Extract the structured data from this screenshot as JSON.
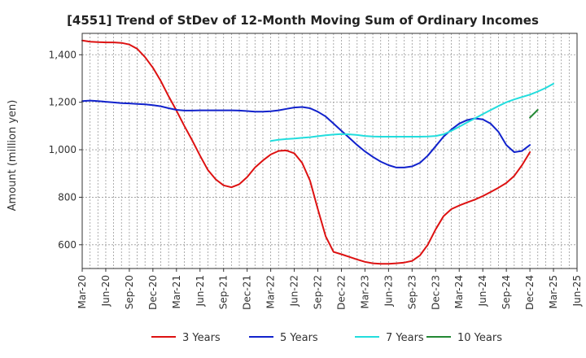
{
  "chart_data": {
    "type": "line",
    "title": "[4551]  Trend of StDev of 12-Month Moving Sum of Ordinary Incomes",
    "xlabel": "",
    "ylabel": "Amount (million yen)",
    "ylim": [
      500,
      1490
    ],
    "yticks": [
      600,
      800,
      1000,
      1200,
      1400
    ],
    "ytick_labels": [
      "600",
      "800",
      "1,000",
      "1,200",
      "1,400"
    ],
    "x_start": "Mar-20",
    "x_end": "Jun-25",
    "xtick_labels": [
      "Mar-20",
      "Jun-20",
      "Sep-20",
      "Dec-20",
      "Mar-21",
      "Jun-21",
      "Sep-21",
      "Dec-21",
      "Mar-22",
      "Jun-22",
      "Sep-22",
      "Dec-22",
      "Mar-23",
      "Jun-23",
      "Sep-23",
      "Dec-23",
      "Mar-24",
      "Jun-24",
      "Sep-24",
      "Dec-24",
      "Mar-25",
      "Jun-25"
    ],
    "grid": true,
    "legend_position": "bottom",
    "series": [
      {
        "name": "3 Years",
        "color": "#dd1111",
        "start_month": 0,
        "values": [
          1460,
          1455,
          1453,
          1452,
          1452,
          1450,
          1443,
          1425,
          1390,
          1345,
          1290,
          1225,
          1165,
          1100,
          1040,
          975,
          915,
          875,
          850,
          842,
          855,
          885,
          925,
          955,
          980,
          995,
          997,
          985,
          945,
          870,
          750,
          635,
          570,
          560,
          549,
          538,
          528,
          522,
          520,
          520,
          522,
          525,
          532,
          555,
          600,
          665,
          720,
          750,
          765,
          778,
          790,
          805,
          822,
          840,
          860,
          890,
          935,
          990
        ]
      },
      {
        "name": "5 Years",
        "color": "#1122cc",
        "start_month": 0,
        "values": [
          1205,
          1207,
          1205,
          1202,
          1199,
          1196,
          1195,
          1193,
          1191,
          1188,
          1183,
          1175,
          1168,
          1165,
          1165,
          1166,
          1166,
          1166,
          1166,
          1166,
          1165,
          1163,
          1160,
          1160,
          1162,
          1166,
          1172,
          1178,
          1180,
          1175,
          1160,
          1140,
          1110,
          1080,
          1050,
          1020,
          993,
          970,
          950,
          935,
          925,
          925,
          930,
          945,
          975,
          1015,
          1055,
          1085,
          1110,
          1125,
          1132,
          1128,
          1110,
          1075,
          1020,
          990,
          995,
          1020
        ]
      },
      {
        "name": "7 Years",
        "color": "#22dddd",
        "start_month": 24,
        "values": [
          1037,
          1042,
          1045,
          1047,
          1050,
          1053,
          1057,
          1061,
          1064,
          1066,
          1065,
          1062,
          1058,
          1056,
          1055,
          1055,
          1055,
          1055,
          1055,
          1055,
          1056,
          1058,
          1065,
          1080,
          1097,
          1115,
          1132,
          1150,
          1167,
          1184,
          1200,
          1212,
          1222,
          1232,
          1245,
          1260,
          1278
        ]
      },
      {
        "name": "10 Years",
        "color": "#228833",
        "start_month": 57,
        "values": [
          1135,
          1168
        ]
      }
    ]
  }
}
